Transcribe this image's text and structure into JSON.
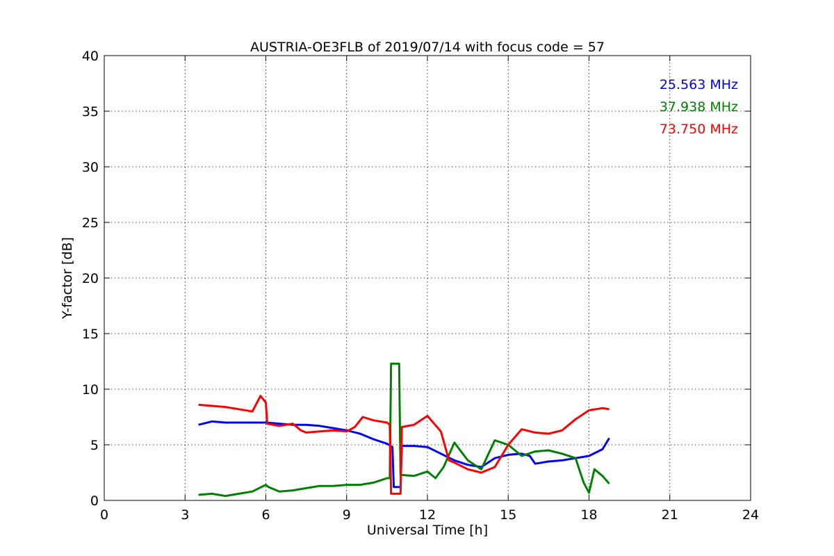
{
  "chart_data": {
    "type": "line",
    "title": "AUSTRIA-OE3FLB of 2019/07/14 with focus code = 57",
    "xlabel": "Universal Time [h]",
    "ylabel": "Y-factor [dB]",
    "xlim": [
      0,
      24
    ],
    "ylim": [
      0,
      40
    ],
    "xticks": [
      0,
      3,
      6,
      9,
      12,
      15,
      18,
      21,
      24
    ],
    "yticks": [
      0,
      5,
      10,
      15,
      20,
      25,
      30,
      35,
      40
    ],
    "grid": true,
    "legend_position": "top-right",
    "series": [
      {
        "name": "25.563 MHz",
        "color": "#0000ff",
        "x": [
          3.5,
          4.0,
          4.5,
          5.0,
          5.5,
          6.0,
          6.5,
          7.0,
          7.5,
          8.0,
          8.5,
          9.0,
          9.5,
          10.0,
          10.5,
          10.7,
          10.75,
          11.0,
          11.05,
          11.5,
          12.0,
          12.5,
          13.0,
          13.5,
          14.0,
          14.5,
          15.0,
          15.5,
          15.8,
          16.0,
          16.5,
          17.0,
          17.5,
          18.0,
          18.5,
          18.75
        ],
        "y": [
          6.8,
          7.1,
          7.0,
          7.0,
          7.0,
          7.0,
          6.9,
          6.8,
          6.8,
          6.7,
          6.5,
          6.3,
          6.0,
          5.5,
          5.1,
          4.8,
          1.2,
          1.2,
          4.9,
          4.9,
          4.8,
          4.2,
          3.6,
          3.2,
          3.0,
          3.8,
          4.1,
          4.2,
          4.0,
          3.3,
          3.5,
          3.6,
          3.8,
          4.0,
          4.6,
          5.6
        ]
      },
      {
        "name": "37.938 MHz",
        "color": "#008000",
        "x": [
          3.5,
          4.0,
          4.5,
          5.0,
          5.5,
          6.0,
          6.1,
          6.5,
          7.0,
          7.5,
          8.0,
          8.5,
          9.0,
          9.5,
          10.0,
          10.5,
          10.6,
          10.65,
          10.95,
          11.0,
          11.5,
          12.0,
          12.3,
          12.6,
          13.0,
          13.5,
          14.0,
          14.5,
          15.0,
          15.5,
          16.0,
          16.5,
          17.0,
          17.5,
          17.8,
          18.0,
          18.2,
          18.5,
          18.75
        ],
        "y": [
          0.5,
          0.6,
          0.4,
          0.6,
          0.8,
          1.4,
          1.2,
          0.8,
          0.9,
          1.1,
          1.3,
          1.3,
          1.4,
          1.4,
          1.6,
          2.0,
          2.0,
          12.3,
          12.3,
          2.3,
          2.2,
          2.6,
          2.0,
          3.0,
          5.2,
          3.6,
          2.8,
          5.4,
          5.0,
          4.0,
          4.4,
          4.5,
          4.2,
          3.8,
          1.6,
          0.7,
          2.8,
          2.2,
          1.5
        ]
      },
      {
        "name": "73.750 MHz",
        "color": "#ff0000",
        "x": [
          3.5,
          4.0,
          4.5,
          5.0,
          5.5,
          5.8,
          6.0,
          6.05,
          6.5,
          7.0,
          7.3,
          7.5,
          8.0,
          8.5,
          9.0,
          9.3,
          9.6,
          10.0,
          10.5,
          10.6,
          10.65,
          11.0,
          11.05,
          11.5,
          12.0,
          12.5,
          12.8,
          13.0,
          13.5,
          14.0,
          14.5,
          15.0,
          15.5,
          16.0,
          16.5,
          17.0,
          17.5,
          18.0,
          18.5,
          18.75
        ],
        "y": [
          8.6,
          8.5,
          8.4,
          8.2,
          8.0,
          9.4,
          8.8,
          6.9,
          6.7,
          6.9,
          6.3,
          6.1,
          6.2,
          6.3,
          6.2,
          6.6,
          7.5,
          7.2,
          7.0,
          6.8,
          0.6,
          0.6,
          6.6,
          6.8,
          7.6,
          6.2,
          3.6,
          3.4,
          2.8,
          2.5,
          3.0,
          5.0,
          6.4,
          6.1,
          6.0,
          6.3,
          7.3,
          8.1,
          8.3,
          8.2
        ]
      }
    ]
  }
}
